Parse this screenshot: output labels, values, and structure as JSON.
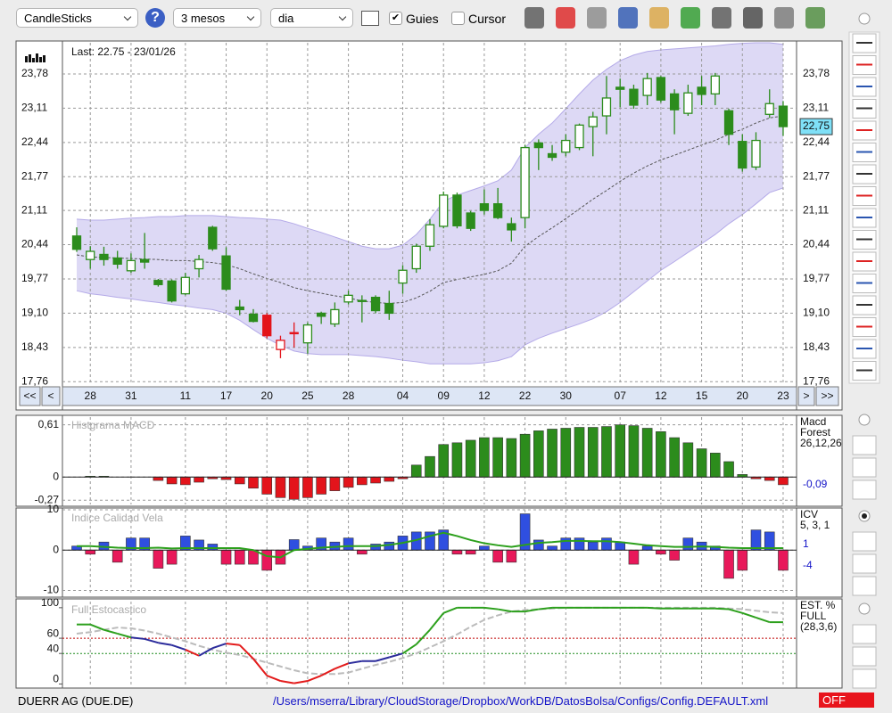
{
  "toolbar": {
    "chart_type": "CandleSticks",
    "period": "3 mesos",
    "interval": "dia",
    "guides": "Guies",
    "guides_checked": true,
    "cursor": "Cursor",
    "cursor_checked": false
  },
  "chart_data": [
    {
      "type": "candlestick",
      "subtitle": "Last: 22.75 - 23/01/26",
      "categories": [
        null,
        "28",
        null,
        null,
        "31",
        null,
        null,
        null,
        "11",
        null,
        null,
        "17",
        null,
        null,
        "20",
        null,
        null,
        "25",
        null,
        null,
        "28",
        null,
        null,
        null,
        "04",
        null,
        null,
        "09",
        null,
        null,
        "12",
        null,
        null,
        "22",
        null,
        null,
        "30",
        null,
        null,
        null,
        "07",
        null,
        null,
        "12",
        null,
        null,
        "15",
        null,
        null,
        "20",
        null,
        null,
        "23"
      ],
      "open": [
        20.61,
        20.15,
        20.25,
        20.18,
        19.93,
        20.15,
        19.74,
        19.73,
        19.48,
        19.97,
        20.78,
        20.22,
        19.22,
        19.08,
        19.06,
        18.39,
        18.72,
        18.52,
        19.1,
        18.89,
        19.32,
        19.35,
        19.41,
        19.29,
        19.69,
        19.97,
        20.41,
        20.8,
        21.41,
        21.06,
        21.24,
        21.24,
        20.85,
        20.97,
        22.43,
        22.22,
        22.25,
        22.34,
        22.75,
        22.96,
        23.52,
        23.48,
        23.36,
        23.71,
        23.39,
        23.01,
        23.52,
        23.39,
        23.06,
        22.46,
        21.96,
        22.99,
        23.15
      ],
      "high": [
        20.78,
        20.41,
        20.4,
        20.32,
        20.27,
        20.67,
        19.77,
        19.76,
        19.89,
        20.24,
        20.81,
        20.39,
        19.36,
        19.18,
        19.1,
        18.66,
        18.92,
        18.92,
        19.13,
        19.31,
        19.54,
        19.45,
        19.45,
        19.54,
        20.04,
        20.46,
        20.94,
        21.48,
        21.46,
        21.1,
        21.52,
        21.55,
        20.97,
        22.39,
        22.5,
        22.39,
        22.6,
        22.81,
        23.04,
        23.74,
        23.69,
        23.57,
        23.8,
        23.74,
        23.48,
        23.57,
        23.74,
        23.8,
        23.1,
        22.6,
        22.64,
        23.48,
        23.25
      ],
      "low": [
        20.3,
        19.97,
        20.03,
        19.97,
        19.89,
        19.97,
        19.62,
        19.31,
        19.45,
        19.8,
        20.32,
        19.54,
        19.06,
        18.92,
        18.61,
        18.22,
        18.43,
        18.31,
        18.89,
        18.83,
        19.27,
        18.92,
        19.1,
        18.97,
        19.48,
        19.89,
        20.32,
        20.76,
        20.76,
        20.71,
        21.03,
        20.94,
        20.5,
        20.76,
        21.9,
        22.08,
        22.17,
        22.29,
        22.17,
        22.6,
        23.13,
        23.1,
        23.17,
        23.22,
        22.6,
        22.96,
        23.17,
        23.17,
        22.39,
        21.87,
        21.9,
        22.92,
        22.57
      ],
      "close": [
        20.35,
        20.31,
        20.15,
        20.06,
        20.13,
        20.1,
        19.66,
        19.34,
        19.8,
        20.15,
        20.36,
        19.57,
        19.17,
        18.94,
        18.66,
        18.57,
        18.71,
        18.87,
        19.04,
        19.17,
        19.45,
        19.33,
        19.15,
        19.1,
        19.94,
        20.41,
        20.83,
        21.41,
        20.81,
        20.76,
        21.11,
        20.97,
        20.73,
        22.34,
        22.34,
        22.15,
        22.48,
        22.78,
        22.94,
        23.31,
        23.48,
        23.17,
        23.69,
        23.27,
        23.08,
        23.41,
        23.38,
        23.74,
        22.6,
        21.94,
        22.48,
        23.2,
        22.75
      ],
      "colors": [
        "#2c8c1c",
        "#2c8c1c",
        "#2c8c1c",
        "#2c8c1c",
        "#2c8c1c",
        "#2c8c1c",
        "#2c8c1c",
        "#2c8c1c",
        "#2c8c1c",
        "#2c8c1c",
        "#2c8c1c",
        "#2c8c1c",
        "#2c8c1c",
        "#2c8c1c",
        "#e3141b",
        "#e3141b",
        "#e3141b",
        "#2c8c1c",
        "#2c8c1c",
        "#2c8c1c",
        "#2c8c1c",
        "#2c8c1c",
        "#2c8c1c",
        "#2c8c1c",
        "#2c8c1c",
        "#2c8c1c",
        "#2c8c1c",
        "#2c8c1c",
        "#2c8c1c",
        "#2c8c1c",
        "#2c8c1c",
        "#2c8c1c",
        "#2c8c1c",
        "#2c8c1c",
        "#2c8c1c",
        "#2c8c1c",
        "#2c8c1c",
        "#2c8c1c",
        "#2c8c1c",
        "#2c8c1c",
        "#2c8c1c",
        "#2c8c1c",
        "#2c8c1c",
        "#2c8c1c",
        "#2c8c1c",
        "#2c8c1c",
        "#2c8c1c",
        "#2c8c1c",
        "#2c8c1c",
        "#2c8c1c",
        "#2c8c1c",
        "#2c8c1c",
        "#2c8c1c"
      ],
      "bands": {
        "color": "#b4aae8",
        "upper": [
          20.94,
          20.92,
          20.92,
          20.94,
          20.96,
          20.97,
          20.99,
          20.99,
          21.01,
          21.01,
          21.01,
          20.99,
          20.97,
          20.96,
          20.94,
          20.92,
          20.85,
          20.76,
          20.68,
          20.59,
          20.5,
          20.41,
          20.36,
          20.36,
          20.43,
          20.64,
          20.94,
          21.29,
          21.41,
          21.5,
          21.59,
          21.69,
          21.9,
          22.34,
          22.6,
          22.82,
          23.1,
          23.39,
          23.66,
          23.87,
          24.04,
          24.15,
          24.22,
          24.25,
          24.27,
          24.29,
          24.31,
          24.33,
          24.36,
          24.38,
          24.39,
          24.39,
          24.36
        ],
        "middle": [
          20.24,
          20.2,
          20.19,
          20.18,
          20.17,
          20.16,
          20.15,
          20.13,
          20.13,
          20.11,
          20.09,
          20.05,
          19.97,
          19.87,
          19.78,
          19.7,
          19.6,
          19.54,
          19.49,
          19.44,
          19.4,
          19.34,
          19.31,
          19.29,
          19.31,
          19.4,
          19.53,
          19.7,
          19.76,
          19.81,
          19.86,
          19.93,
          20.08,
          20.41,
          20.6,
          20.77,
          20.95,
          21.14,
          21.33,
          21.5,
          21.68,
          21.84,
          21.98,
          22.1,
          22.19,
          22.29,
          22.39,
          22.48,
          22.6,
          22.7,
          22.82,
          22.92,
          22.96
        ],
        "lower": [
          19.54,
          19.48,
          19.45,
          19.41,
          19.38,
          19.34,
          19.31,
          19.27,
          19.24,
          19.2,
          19.17,
          19.1,
          18.96,
          18.78,
          18.61,
          18.47,
          18.36,
          18.31,
          18.29,
          18.29,
          18.29,
          18.27,
          18.25,
          18.22,
          18.18,
          18.15,
          18.11,
          18.11,
          18.11,
          18.11,
          18.13,
          18.17,
          18.25,
          18.48,
          18.61,
          18.71,
          18.8,
          18.89,
          18.99,
          19.13,
          19.31,
          19.52,
          19.73,
          19.94,
          20.11,
          20.29,
          20.46,
          20.64,
          20.85,
          21.03,
          21.24,
          21.46,
          21.55
        ]
      },
      "ylim": [
        17.73,
        24.39
      ],
      "yticks": [
        {
          "value": 23.78,
          "label": "23,78"
        },
        {
          "value": 23.11,
          "label": "23,11"
        },
        {
          "value": 22.44,
          "label": "22,44"
        },
        {
          "value": 21.77,
          "label": "21,77"
        },
        {
          "value": 21.11,
          "label": "21,11"
        },
        {
          "value": 20.44,
          "label": "20,44"
        },
        {
          "value": 19.77,
          "label": "19,77"
        },
        {
          "value": 19.1,
          "label": "19,10"
        },
        {
          "value": 18.43,
          "label": "18,43"
        },
        {
          "value": 17.76,
          "label": "17,76"
        }
      ],
      "grid": true,
      "last_label": "22,75",
      "nav": [
        "<<",
        "<",
        ">",
        ">>"
      ]
    },
    {
      "type": "bar",
      "title": "Histgrama MACD",
      "values": [
        0,
        0.01,
        0.01,
        0,
        0,
        0,
        -0.04,
        -0.08,
        -0.09,
        -0.06,
        -0.02,
        -0.03,
        -0.08,
        -0.13,
        -0.2,
        -0.24,
        -0.26,
        -0.24,
        -0.2,
        -0.16,
        -0.12,
        -0.09,
        -0.07,
        -0.05,
        -0.02,
        0.14,
        0.24,
        0.38,
        0.4,
        0.43,
        0.46,
        0.46,
        0.45,
        0.5,
        0.54,
        0.56,
        0.57,
        0.58,
        0.58,
        0.59,
        0.61,
        0.6,
        0.57,
        0.53,
        0.46,
        0.4,
        0.33,
        0.28,
        0.18,
        0.03,
        -0.02,
        -0.04,
        -0.09
      ],
      "pos_color": "#2c8c1c",
      "neg_color": "#e3141b",
      "ylim": [
        -0.32,
        0.7
      ],
      "yticks": [
        {
          "value": 0.61,
          "label": "0,61"
        },
        0,
        {
          "value": -0.27,
          "label": "-0,27"
        }
      ],
      "legend": [
        "Macd",
        "Forest",
        "26,12,26"
      ],
      "last_label": "-0,09"
    },
    {
      "type": "bar",
      "title": "Indice Calidad Vela",
      "values": [
        1,
        -1,
        2,
        -3,
        3,
        3,
        -4.5,
        -3.5,
        3.5,
        2.5,
        1.5,
        -3.5,
        -3.5,
        -3.5,
        -5,
        -3.5,
        2.6,
        1,
        3,
        2,
        3,
        -1,
        1.5,
        2,
        3.5,
        4.5,
        4.5,
        5,
        -1,
        -1,
        1,
        -3,
        -3,
        9,
        2.5,
        1,
        3,
        3,
        2,
        3,
        2,
        -3.5,
        1,
        -1,
        -2.5,
        3,
        2,
        1,
        -7,
        -5,
        5,
        4.5,
        -5
      ],
      "signal": [
        1,
        1,
        0.8,
        0.6,
        0.5,
        0.5,
        0.6,
        0.4,
        0.5,
        0.5,
        0.5,
        0.5,
        0.5,
        0,
        -1.5,
        -1.8,
        0,
        0.3,
        0.6,
        0.8,
        1,
        1,
        1,
        1.3,
        1.8,
        2.5,
        3.5,
        4.3,
        3.5,
        2.5,
        1.7,
        1.2,
        0.8,
        1.3,
        1.8,
        2,
        2.3,
        2.3,
        2.2,
        2.2,
        2,
        1.6,
        1.2,
        1,
        0.8,
        0.8,
        0.9,
        0.8,
        0.6,
        0.5,
        0.5,
        0.5,
        0.5
      ],
      "signal_color": "#2ca01c",
      "pos_color": "#2f4fe0",
      "neg_color": "#e8185a",
      "ylim": [
        -11,
        10
      ],
      "yticks": [
        10,
        0,
        -10
      ],
      "legend": [
        "ICV",
        "5, 3, 1"
      ],
      "side_labels": [
        "1",
        "-4"
      ]
    },
    {
      "type": "line",
      "title": "Full Estocastico",
      "k_values": [
        78,
        78,
        71,
        66,
        61,
        59,
        54,
        51,
        45,
        37,
        47,
        53,
        51,
        33,
        11,
        4,
        1,
        4,
        11,
        20,
        27,
        30,
        30,
        35,
        40,
        52,
        71,
        93,
        100,
        100,
        100,
        98,
        95,
        95,
        98,
        100,
        100,
        100,
        100,
        100,
        100,
        100,
        100,
        99,
        99,
        99,
        99,
        99,
        98,
        93,
        87,
        81,
        81
      ],
      "k_colors": [
        "#2ca01c",
        "#2ca01c",
        "#2ca01c",
        "#2ca01c",
        "#2ca01c",
        "#2c2c9c",
        "#2c2c9c",
        "#2c2c9c",
        "#2c2c9c",
        "#e31b1b",
        "#2c2c9c",
        "#2c2c9c",
        "#e31b1b",
        "#e31b1b",
        "#e31b1b",
        "#e31b1b",
        "#e31b1b",
        "#e31b1b",
        "#e31b1b",
        "#e31b1b",
        "#e31b1b",
        "#2c2c9c",
        "#2c2c9c",
        "#2c2c9c",
        "#2c2c9c",
        "#2ca01c",
        "#2ca01c",
        "#2ca01c",
        "#2ca01c",
        "#2ca01c",
        "#2ca01c",
        "#2ca01c",
        "#2ca01c",
        "#2ca01c",
        "#2ca01c",
        "#2ca01c",
        "#2ca01c",
        "#2ca01c",
        "#2ca01c",
        "#2ca01c",
        "#2ca01c",
        "#2ca01c",
        "#2ca01c",
        "#2ca01c",
        "#2ca01c",
        "#2ca01c",
        "#2ca01c",
        "#2ca01c",
        "#2ca01c",
        "#2ca01c",
        "#2ca01c",
        "#2ca01c",
        "#2ca01c"
      ],
      "d_values": [
        66,
        68,
        71,
        74,
        73,
        70,
        66,
        61,
        56,
        50,
        45,
        41,
        38,
        33,
        28,
        23,
        18,
        14,
        13,
        13,
        15,
        20,
        25,
        29,
        34,
        40,
        48,
        56,
        65,
        75,
        84,
        90,
        95,
        97,
        98,
        99,
        100,
        100,
        100,
        100,
        100,
        100,
        100,
        100,
        100,
        100,
        100,
        100,
        99,
        98,
        96,
        94,
        93
      ],
      "d_color": "#bbbbbb",
      "ylim": [
        -3,
        108
      ],
      "yticks": [
        100,
        60,
        40,
        0
      ],
      "levels": [
        60,
        40
      ],
      "level_colors": [
        "#c00000",
        "#1c8c1c"
      ],
      "legend": [
        "EST. %",
        "FULL",
        "(28,3,6)"
      ]
    }
  ],
  "footer": {
    "symbol": "DUERR AG (DUE.DE)",
    "config_path": "/Users/mserra/Library/CloudStorage/Dropbox/WorkDB/DatosBolsa/Configs/Config.DEFAULT.xml",
    "status": "OFF"
  }
}
